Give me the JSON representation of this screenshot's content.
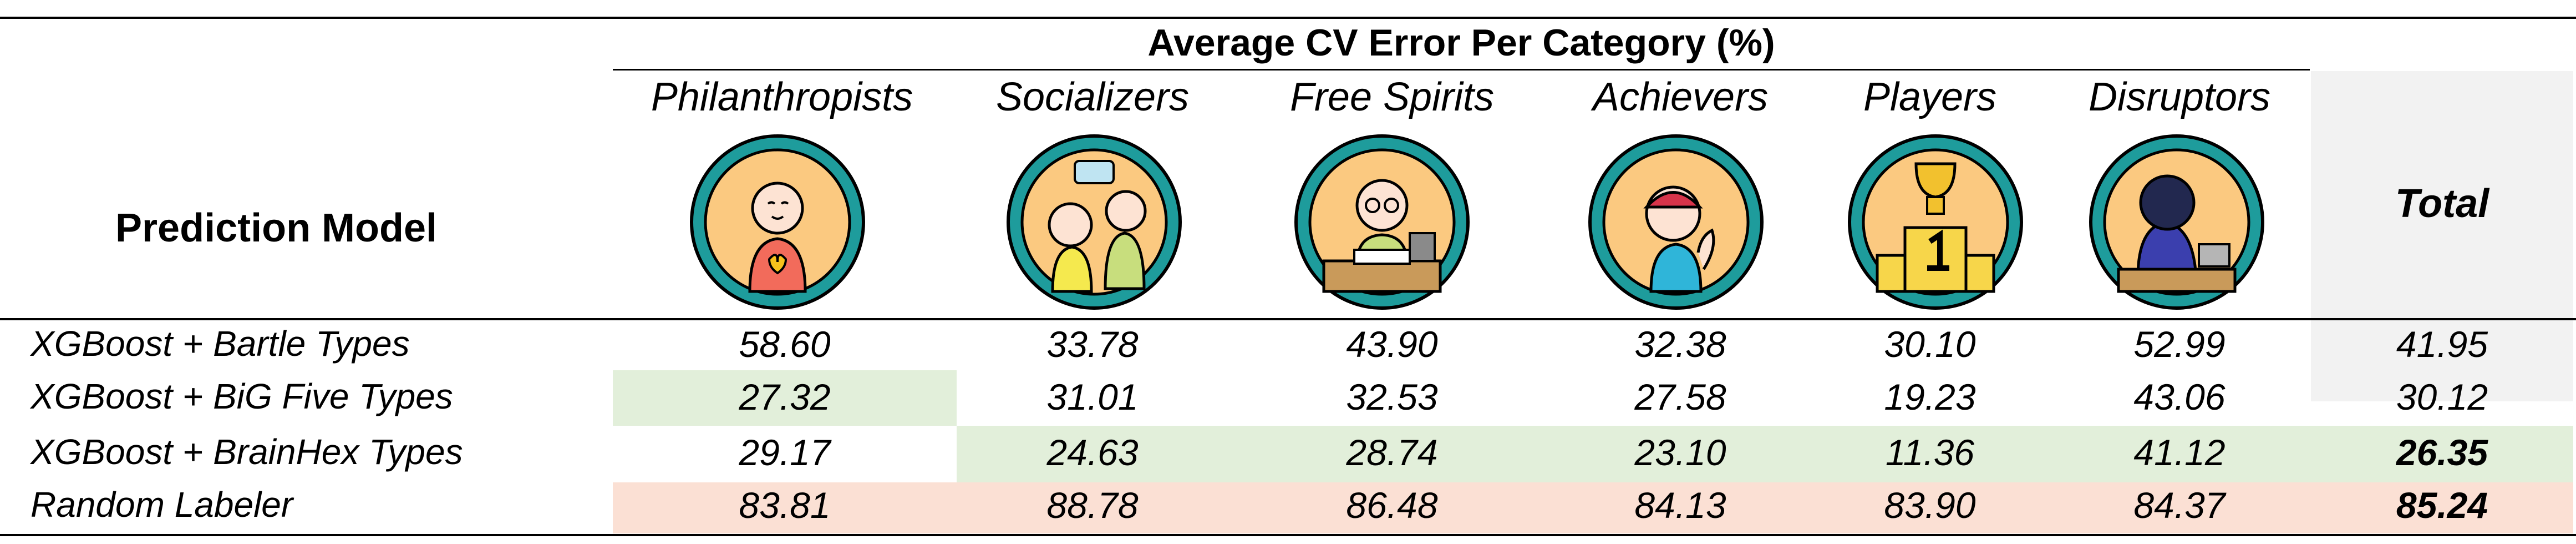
{
  "table": {
    "super_header": "Average CV Error Per Category (%)",
    "model_header": "Prediction Model",
    "total_header": "Total",
    "categories": [
      {
        "label": "Philanthropists",
        "icon": "philanthropist-icon"
      },
      {
        "label": "Socializers",
        "icon": "socializer-icon"
      },
      {
        "label": "Free Spirits",
        "icon": "free-spirit-icon"
      },
      {
        "label": "Achievers",
        "icon": "achiever-icon"
      },
      {
        "label": "Players",
        "icon": "player-icon"
      },
      {
        "label": "Disruptors",
        "icon": "disruptor-icon"
      }
    ],
    "rows": [
      {
        "label": "XGBoost + Bartle Types",
        "values": [
          "58.60",
          "33.78",
          "43.90",
          "32.38",
          "30.10",
          "52.99"
        ],
        "total": "41.95"
      },
      {
        "label": "XGBoost + BiG Five Types",
        "values": [
          "27.32",
          "31.01",
          "32.53",
          "27.58",
          "19.23",
          "43.06"
        ],
        "total": "30.12"
      },
      {
        "label": "XGBoost + BrainHex Types",
        "values": [
          "29.17",
          "24.63",
          "28.74",
          "23.10",
          "11.36",
          "41.12"
        ],
        "total": "26.35"
      },
      {
        "label": "Random Labeler",
        "values": [
          "83.81",
          "88.78",
          "86.48",
          "84.13",
          "83.90",
          "84.37"
        ],
        "total": "85.24"
      }
    ],
    "colors": {
      "best": "#e2efda",
      "worst": "#fbe0d4",
      "total_column": "#f2f2f2",
      "icon_ring": "#1e9c9c",
      "icon_fill": "#fbc980"
    }
  }
}
